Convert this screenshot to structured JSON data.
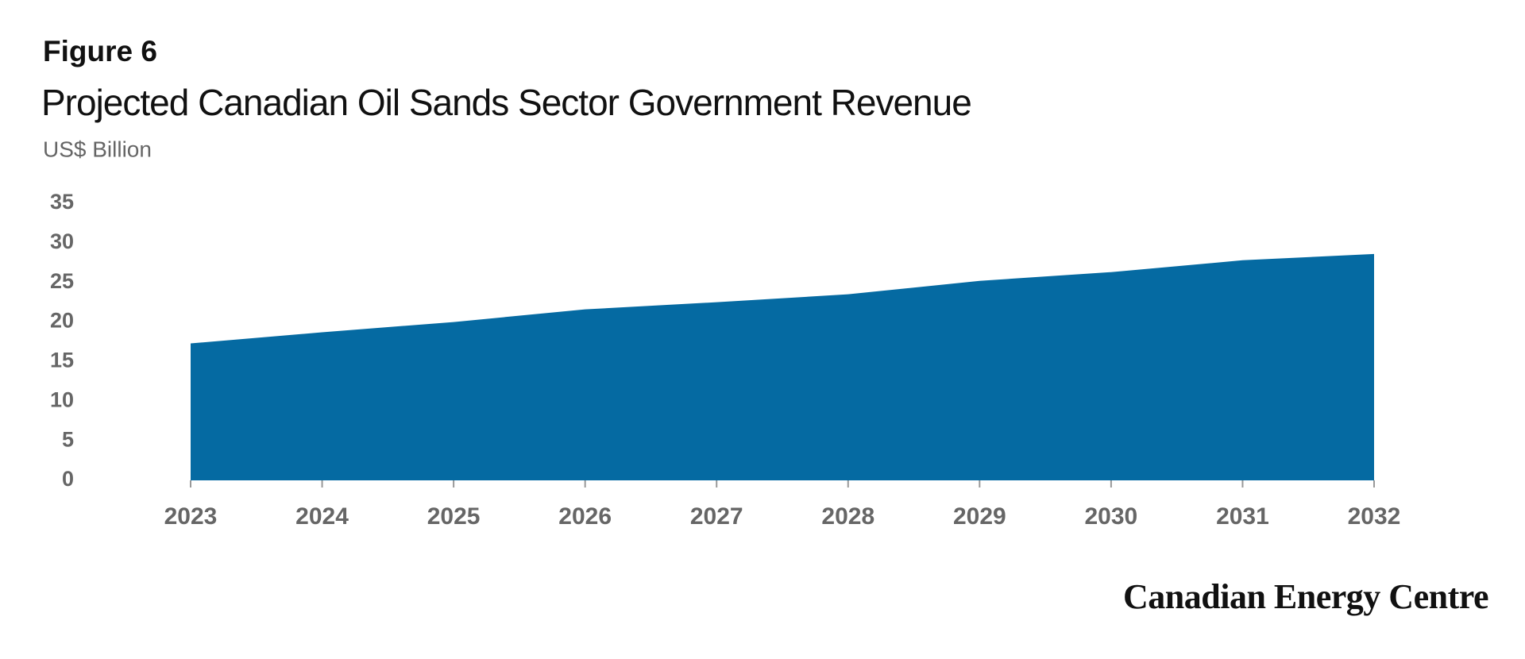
{
  "chart_data": {
    "type": "area",
    "label": "Figure 6",
    "title": "Projected Canadian Oil Sands Sector Government Revenue",
    "subtitle": "US$ Billion",
    "source": "Canadian Energy Centre",
    "categories": [
      "2023",
      "2024",
      "2025",
      "2026",
      "2027",
      "2028",
      "2029",
      "2030",
      "2031",
      "2032"
    ],
    "values": [
      17.3,
      18.7,
      20.0,
      21.6,
      22.5,
      23.5,
      25.2,
      26.3,
      27.8,
      28.6
    ],
    "color": "#056aa2",
    "ylim": [
      0,
      35
    ],
    "yticks": [
      0,
      5,
      10,
      15,
      20,
      25,
      30,
      35
    ],
    "grid": true
  }
}
